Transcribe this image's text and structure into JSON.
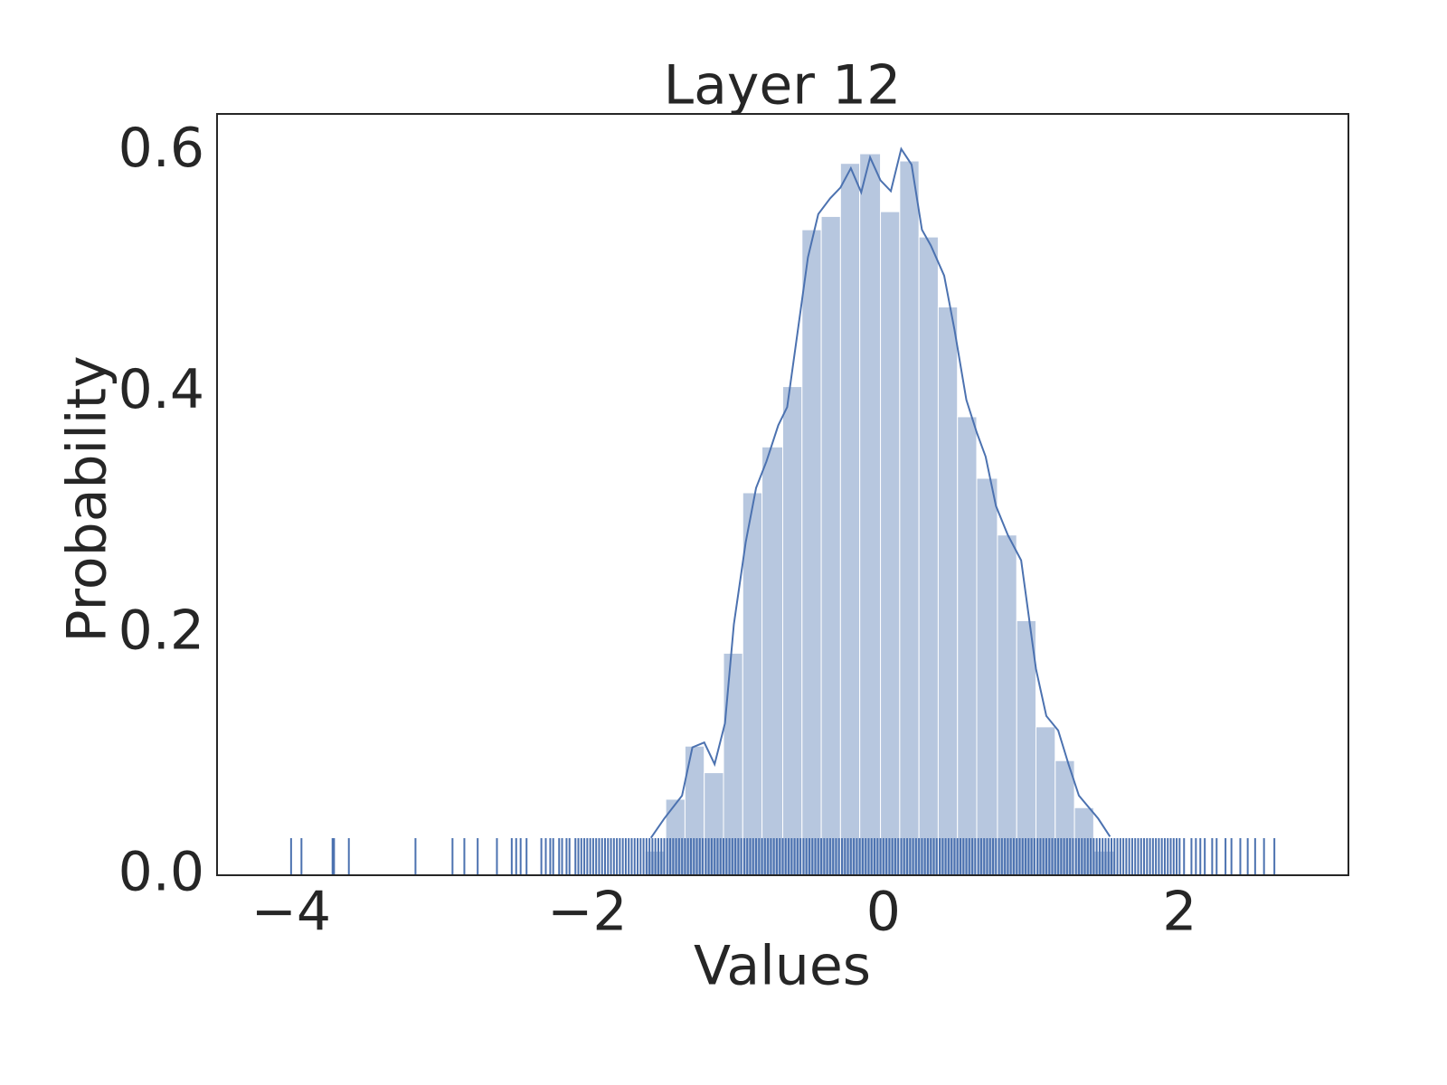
{
  "chart_data": {
    "type": "histogram",
    "title": "Layer 12",
    "x_label": "Values",
    "y_label": "Probability",
    "color": "#4c72b0",
    "bins": [
      -1.61,
      -1.47,
      -1.34,
      -1.21,
      -1.08,
      -0.95,
      -0.82,
      -0.68,
      -0.55,
      -0.42,
      -0.29,
      -0.16,
      -0.02,
      0.11,
      0.24,
      0.37,
      0.5,
      0.63,
      0.77,
      0.9,
      1.03,
      1.16,
      1.29,
      1.42,
      1.56
    ],
    "values": [
      0.02,
      0.063,
      0.107,
      0.085,
      0.184,
      0.317,
      0.355,
      0.405,
      0.535,
      0.546,
      0.59,
      0.598,
      0.55,
      0.592,
      0.529,
      0.471,
      0.38,
      0.329,
      0.282,
      0.211,
      0.123,
      0.095,
      0.056,
      0.02
    ],
    "kde": {
      "x": [
        -1.57,
        -1.48,
        -1.36,
        -1.29,
        -1.21,
        -1.14,
        -1.07,
        -1.01,
        -0.93,
        -0.86,
        -0.79,
        -0.71,
        -0.65,
        -0.59,
        -0.51,
        -0.44,
        -0.36,
        -0.29,
        -0.22,
        -0.15,
        -0.09,
        -0.02,
        0.05,
        0.12,
        0.19,
        0.26,
        0.32,
        0.41,
        0.48,
        0.56,
        0.63,
        0.69,
        0.76,
        0.84,
        0.93,
        1.03,
        1.1,
        1.18,
        1.25,
        1.32,
        1.45,
        1.53
      ],
      "y": [
        0.031,
        0.047,
        0.066,
        0.106,
        0.11,
        0.092,
        0.126,
        0.208,
        0.276,
        0.321,
        0.343,
        0.373,
        0.388,
        0.441,
        0.512,
        0.548,
        0.561,
        0.57,
        0.586,
        0.566,
        0.595,
        0.576,
        0.567,
        0.602,
        0.589,
        0.535,
        0.522,
        0.497,
        0.452,
        0.394,
        0.367,
        0.347,
        0.306,
        0.282,
        0.261,
        0.171,
        0.132,
        0.12,
        0.092,
        0.066,
        0.047,
        0.032
      ]
    },
    "rug": [
      -4.0,
      -3.93,
      -3.72,
      -3.71,
      -3.61,
      -3.16,
      -2.91,
      -2.83,
      -2.74,
      -2.61,
      -2.51,
      -2.48,
      -2.45,
      -2.41,
      -2.31,
      -2.28,
      -2.25,
      -2.23,
      -2.19,
      -2.17,
      -2.14,
      -2.12,
      -2.08,
      -2.06,
      -2.04,
      -2.02,
      -2.0,
      -1.98,
      -1.96,
      -1.94,
      -1.92,
      -1.9,
      -1.88,
      -1.86,
      -1.84,
      -1.82,
      -1.8,
      -1.78,
      -1.76,
      -1.74,
      -1.72,
      -1.7,
      -1.68,
      -1.66,
      -1.64,
      -1.62,
      -1.6,
      -1.58,
      -1.56,
      -1.54,
      -1.52,
      -1.5,
      -1.48,
      -1.46,
      -1.44,
      -1.42,
      -1.4,
      -1.38,
      -1.36,
      -1.34,
      -1.32,
      -1.3,
      -1.28,
      -1.26,
      -1.24,
      -1.22,
      -1.2,
      -1.18,
      -1.16,
      -1.14,
      -1.12,
      -1.1,
      -1.08,
      -1.06,
      -1.04,
      -1.02,
      -1.0,
      -0.98,
      -0.96,
      -0.94,
      -0.92,
      -0.9,
      -0.88,
      -0.86,
      -0.84,
      -0.82,
      -0.8,
      -0.78,
      -0.76,
      -0.74,
      -0.72,
      -0.7,
      -0.68,
      -0.66,
      -0.64,
      -0.62,
      -0.6,
      -0.58,
      -0.56,
      -0.54,
      -0.52,
      -0.5,
      -0.48,
      -0.46,
      -0.44,
      -0.42,
      -0.4,
      -0.38,
      -0.36,
      -0.34,
      -0.32,
      -0.3,
      -0.28,
      -0.26,
      -0.24,
      -0.22,
      -0.2,
      -0.18,
      -0.16,
      -0.14,
      -0.12,
      -0.1,
      -0.08,
      -0.06,
      -0.04,
      -0.02,
      0.0,
      0.02,
      0.04,
      0.06,
      0.08,
      0.1,
      0.12,
      0.14,
      0.16,
      0.18,
      0.2,
      0.22,
      0.24,
      0.26,
      0.28,
      0.3,
      0.32,
      0.34,
      0.36,
      0.38,
      0.4,
      0.42,
      0.44,
      0.46,
      0.48,
      0.5,
      0.52,
      0.54,
      0.56,
      0.58,
      0.6,
      0.62,
      0.64,
      0.66,
      0.68,
      0.7,
      0.72,
      0.74,
      0.76,
      0.78,
      0.8,
      0.82,
      0.84,
      0.86,
      0.88,
      0.9,
      0.92,
      0.94,
      0.96,
      0.98,
      1.0,
      1.02,
      1.04,
      1.06,
      1.08,
      1.1,
      1.12,
      1.14,
      1.16,
      1.18,
      1.2,
      1.22,
      1.24,
      1.26,
      1.28,
      1.3,
      1.32,
      1.34,
      1.36,
      1.38,
      1.4,
      1.42,
      1.44,
      1.46,
      1.48,
      1.5,
      1.52,
      1.54,
      1.56,
      1.58,
      1.6,
      1.62,
      1.64,
      1.66,
      1.68,
      1.7,
      1.72,
      1.74,
      1.76,
      1.78,
      1.8,
      1.82,
      1.84,
      1.86,
      1.88,
      1.9,
      1.92,
      1.94,
      1.96,
      1.98,
      2.0,
      2.03,
      2.08,
      2.11,
      2.14,
      2.17,
      2.22,
      2.25,
      2.31,
      2.35,
      2.41,
      2.46,
      2.51,
      2.57,
      2.64
    ],
    "xlim": [
      -4.5,
      3.14
    ],
    "ylim": [
      0,
      0.631
    ],
    "xticks": [
      {
        "value": -4,
        "label": "−4"
      },
      {
        "value": -2,
        "label": "−2"
      },
      0,
      2
    ],
    "yticks": [
      {
        "value": 0,
        "label": "0.0"
      },
      0.2,
      0.4,
      0.6
    ],
    "grid": false
  }
}
